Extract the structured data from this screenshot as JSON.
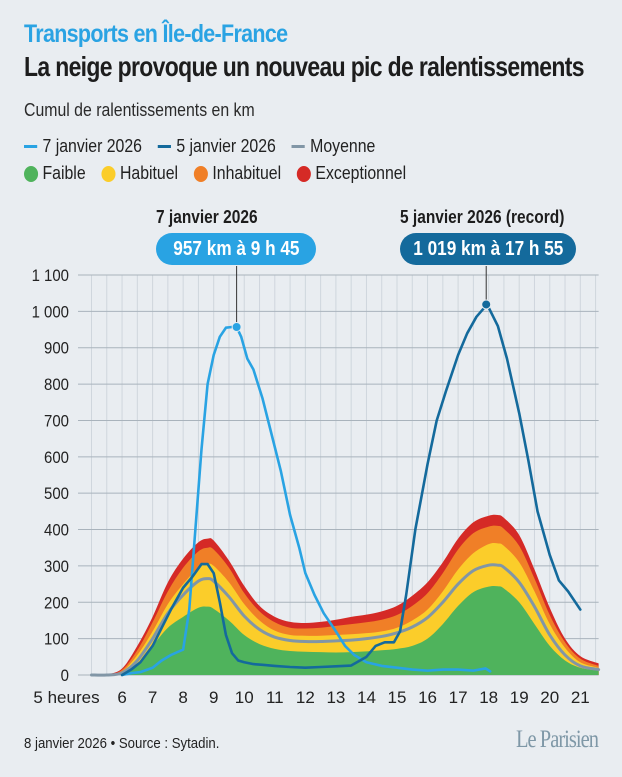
{
  "header": {
    "kicker": "Transports en Île-de-France",
    "title": "La neige provoque un nouveau pic de ralentissements",
    "subtitle": "Cumul de ralentissements en km"
  },
  "legend": {
    "lines": [
      {
        "label": "7 janvier 2026",
        "color": "#29a3e3"
      },
      {
        "label": "5 janvier 2026",
        "color": "#146a9c"
      },
      {
        "label": "Moyenne",
        "color": "#8196a6"
      }
    ],
    "levels": [
      {
        "label": "Faible",
        "color": "#4fb35c"
      },
      {
        "label": "Habituel",
        "color": "#fbcd2a"
      },
      {
        "label": "Inhabituel",
        "color": "#f07f27"
      },
      {
        "label": "Exceptionnel",
        "color": "#d52a26"
      }
    ]
  },
  "annotations": [
    {
      "label": "7 janvier 2026",
      "value": "957 km à 9 h 45",
      "color": "#29a3e3"
    },
    {
      "label": "5 janvier 2026 (record)",
      "value": "1 019 km à 17 h 55",
      "color": "#146a9c"
    }
  ],
  "footer": {
    "source": "8 janvier 2026 • Source : Sytadin.",
    "logo": "Le Parisien"
  },
  "chart_data": {
    "type": "line",
    "title": "Cumul de ralentissements en km",
    "xlabel": "",
    "ylabel": "km",
    "xlim": [
      5,
      21.6
    ],
    "ylim": [
      0,
      1100
    ],
    "grid": true,
    "x_ticks": [
      5,
      6,
      7,
      8,
      9,
      10,
      11,
      12,
      13,
      14,
      15,
      16,
      17,
      18,
      19,
      20,
      21
    ],
    "x_tick_labels": [
      "5 heures",
      "6",
      "7",
      "8",
      "9",
      "10",
      "11",
      "12",
      "13",
      "14",
      "15",
      "16",
      "17",
      "18",
      "19",
      "20",
      "21"
    ],
    "y_ticks": [
      0,
      100,
      200,
      300,
      400,
      500,
      600,
      700,
      800,
      900,
      1000,
      1100
    ],
    "y_tick_labels": [
      "0",
      "100",
      "200",
      "300",
      "400",
      "500",
      "600",
      "700",
      "800",
      "900",
      "1 000",
      "1 100"
    ],
    "bands_x": [
      5,
      5.5,
      6,
      6.5,
      7,
      7.5,
      8,
      8.5,
      8.8,
      9,
      9.5,
      10,
      10.5,
      11,
      11.5,
      12,
      12.5,
      13,
      13.5,
      14,
      14.5,
      15,
      15.5,
      16,
      16.5,
      17,
      17.5,
      18,
      18.3,
      18.5,
      19,
      19.5,
      20,
      20.5,
      21,
      21.6
    ],
    "bands": [
      {
        "name": "Faible",
        "color": "#4fb35c",
        "values": [
          0,
          0,
          4,
          30,
          80,
          130,
          160,
          185,
          188,
          182,
          150,
          110,
          85,
          72,
          66,
          64,
          63,
          62,
          63,
          65,
          68,
          72,
          80,
          100,
          140,
          190,
          228,
          243,
          244,
          238,
          200,
          140,
          80,
          40,
          20,
          12
        ]
      },
      {
        "name": "Habituel",
        "color": "#fbcd2a",
        "values": [
          0,
          0,
          10,
          55,
          120,
          195,
          250,
          295,
          305,
          300,
          255,
          195,
          150,
          122,
          110,
          108,
          108,
          110,
          112,
          115,
          120,
          130,
          150,
          180,
          230,
          290,
          335,
          360,
          362,
          355,
          310,
          230,
          140,
          75,
          35,
          20
        ]
      },
      {
        "name": "Inhabituel",
        "color": "#f07f27",
        "values": [
          0,
          0,
          14,
          68,
          145,
          230,
          295,
          340,
          350,
          345,
          295,
          225,
          175,
          145,
          130,
          128,
          130,
          135,
          140,
          145,
          152,
          165,
          190,
          225,
          280,
          345,
          390,
          408,
          410,
          402,
          355,
          265,
          165,
          90,
          45,
          25
        ]
      },
      {
        "name": "Exceptionnel",
        "color": "#d52a26",
        "values": [
          0,
          2,
          18,
          80,
          160,
          255,
          320,
          365,
          375,
          370,
          315,
          245,
          190,
          160,
          146,
          143,
          146,
          152,
          160,
          166,
          175,
          190,
          218,
          255,
          310,
          375,
          420,
          438,
          440,
          432,
          385,
          290,
          185,
          100,
          52,
          32
        ]
      }
    ],
    "series": [
      {
        "name": "Moyenne",
        "color": "#8196a6",
        "x": [
          5,
          5.5,
          6,
          6.5,
          7,
          7.5,
          8,
          8.5,
          8.8,
          9,
          9.5,
          10,
          10.5,
          11,
          11.5,
          12,
          12.5,
          13,
          13.5,
          14,
          14.5,
          15,
          15.5,
          16,
          16.5,
          17,
          17.5,
          18,
          18.3,
          18.5,
          19,
          19.5,
          20,
          20.5,
          21,
          21.6
        ],
        "values": [
          0,
          0,
          6,
          40,
          100,
          170,
          220,
          258,
          265,
          258,
          215,
          162,
          125,
          104,
          95,
          92,
          92,
          94,
          96,
          100,
          106,
          116,
          132,
          158,
          200,
          250,
          287,
          302,
          302,
          296,
          255,
          188,
          110,
          55,
          25,
          15
        ]
      },
      {
        "name": "7 janvier 2026",
        "color": "#29a3e3",
        "x": [
          6,
          6.3,
          6.6,
          7,
          7.3,
          7.6,
          8,
          8.2,
          8.4,
          8.6,
          8.8,
          9,
          9.2,
          9.4,
          9.6,
          9.75,
          9.9,
          10.1,
          10.3,
          10.6,
          10.9,
          11.2,
          11.5,
          11.8,
          12,
          12.3,
          12.6,
          13,
          13.3,
          13.6,
          14,
          14.5,
          15,
          15.5,
          16,
          16.5,
          17,
          17.5,
          17.9,
          18.05
        ],
        "values": [
          0,
          5,
          8,
          20,
          40,
          55,
          70,
          180,
          400,
          620,
          800,
          880,
          930,
          955,
          957,
          957,
          930,
          870,
          840,
          760,
          660,
          560,
          440,
          350,
          280,
          220,
          170,
          120,
          80,
          55,
          35,
          25,
          20,
          15,
          12,
          15,
          15,
          12,
          18,
          10
        ]
      },
      {
        "name": "5 janvier 2026",
        "color": "#146a9c",
        "x": [
          6,
          6.3,
          6.6,
          7,
          7.3,
          7.6,
          8,
          8.3,
          8.6,
          8.8,
          9,
          9.2,
          9.4,
          9.6,
          9.8,
          10,
          10.3,
          10.6,
          11,
          11.5,
          12,
          12.5,
          13,
          13.5,
          14,
          14.3,
          14.6,
          14.9,
          15.1,
          15.3,
          15.6,
          16,
          16.3,
          16.6,
          17,
          17.3,
          17.6,
          17.95,
          18.3,
          18.6,
          19,
          19.3,
          19.6,
          20,
          20.3,
          20.6,
          21
        ],
        "values": [
          0,
          15,
          35,
          80,
          130,
          180,
          240,
          270,
          305,
          305,
          280,
          200,
          110,
          60,
          40,
          35,
          30,
          28,
          25,
          22,
          20,
          22,
          24,
          26,
          50,
          80,
          90,
          90,
          120,
          220,
          400,
          580,
          700,
          780,
          880,
          940,
          985,
          1019,
          960,
          870,
          720,
          590,
          450,
          330,
          260,
          230,
          180
        ]
      }
    ],
    "peaks": [
      {
        "series": "7 janvier 2026",
        "x": 9.75,
        "y": 957
      },
      {
        "series": "5 janvier 2026",
        "x": 17.92,
        "y": 1019
      }
    ]
  }
}
